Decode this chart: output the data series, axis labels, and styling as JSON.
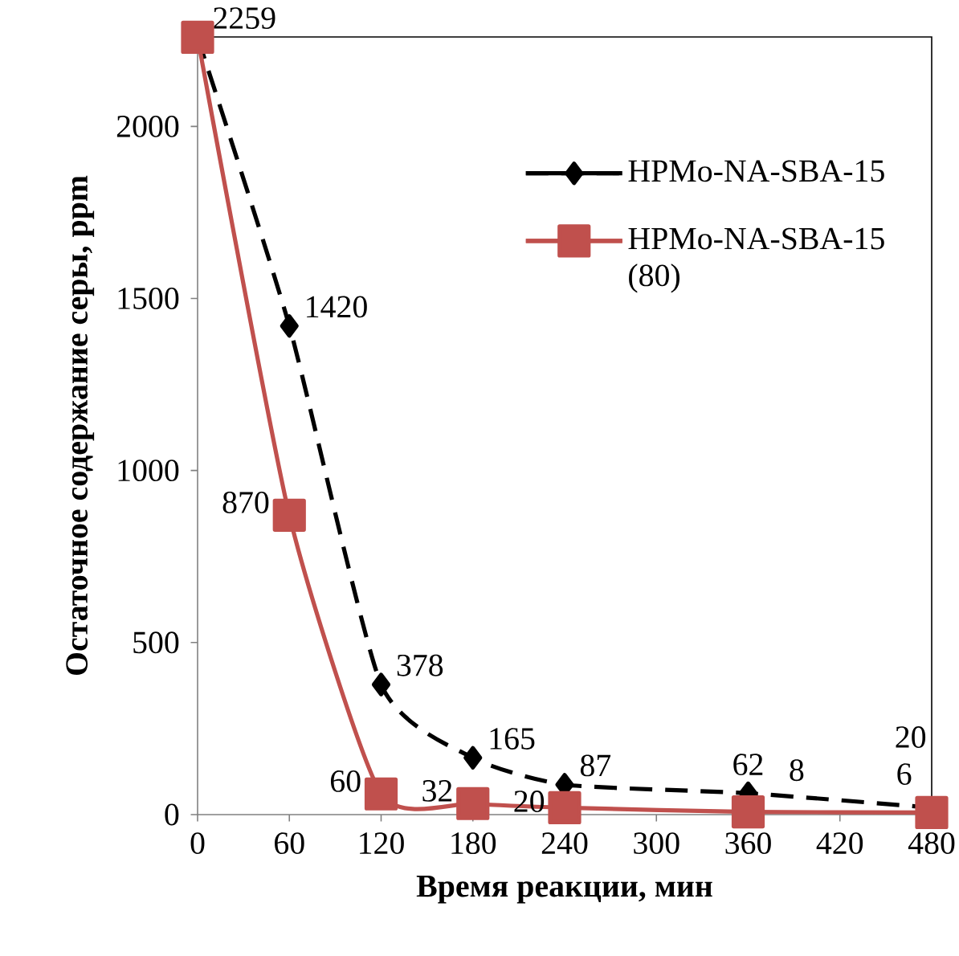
{
  "chart_data": {
    "type": "line",
    "xlabel": "Время реакции, мин",
    "ylabel": "Остаточное содержание серы, ppm",
    "x": [
      0,
      60,
      120,
      180,
      240,
      360,
      480
    ],
    "series": [
      {
        "name": "HPMo-NA-SBA-15",
        "color": "#000000",
        "line_style": "dashed",
        "marker": "diamond",
        "values": [
          2259,
          1420,
          378,
          165,
          87,
          62,
          20
        ],
        "value_labels": [
          "2259",
          "1420",
          "378",
          "165",
          "87",
          "62",
          "20"
        ]
      },
      {
        "name": "HPMo-NA-SBA-15 (80)",
        "color": "#c0504d",
        "line_style": "solid",
        "marker": "square",
        "values": [
          2259,
          870,
          60,
          32,
          20,
          8,
          6
        ],
        "value_labels": [
          null,
          "870",
          "60",
          "32",
          "20",
          "8",
          "6"
        ]
      }
    ],
    "xlim": [
      0,
      480
    ],
    "ylim": [
      0,
      2260
    ],
    "xticks": [
      0,
      60,
      120,
      180,
      240,
      300,
      360,
      420,
      480
    ],
    "yticks": [
      0,
      500,
      1000,
      1500,
      2000
    ],
    "grid": false,
    "legend": "top right"
  }
}
